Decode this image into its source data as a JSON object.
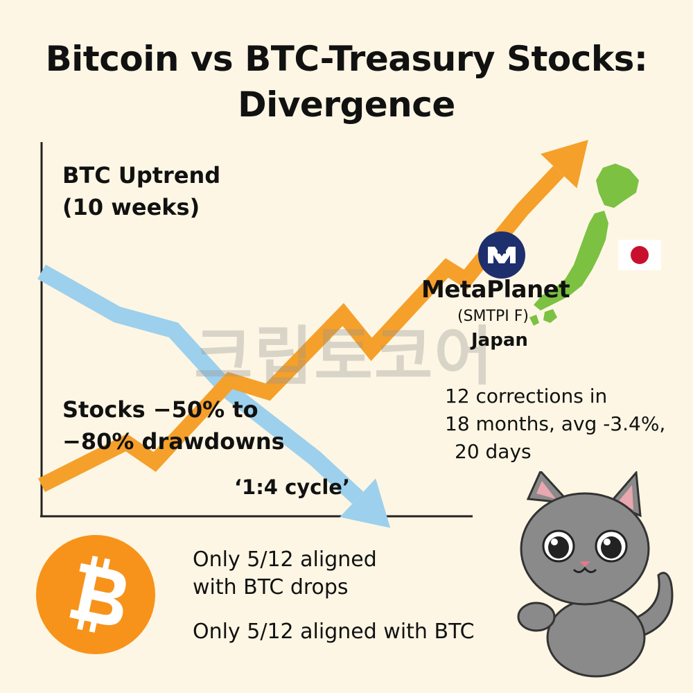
{
  "title": {
    "line1": "Bitcoin vs BTC-Treasury Stocks:",
    "line2": "Divergence"
  },
  "annotations": {
    "btc_uptrend_line1": "BTC Uptrend",
    "btc_uptrend_line2": "(10 weeks)",
    "stocks_line1": "Stocks −50% to",
    "stocks_line2": "−80% drawdowns",
    "cycle": "‘1:4 cycle’"
  },
  "metaplanet": {
    "name": "MetaPlanet",
    "ticker": "(SMTPI F)",
    "country": "Japan",
    "corrections_line1": "12 corrections in",
    "corrections_line2": "18 months, avg -3.4%,",
    "corrections_line3": "20 days"
  },
  "bottom_notes": {
    "aligned_drops_line1": "Only 5/12 aligned",
    "aligned_drops_line2": "with BTC drops",
    "aligned_btc": "Only 5/12 aligned with BTC"
  },
  "watermark": "크립토코어",
  "icons": {
    "btc_coin": "bitcoin-coin-icon",
    "metaplanet_logo": "metaplanet-logo-icon",
    "japan_map": "japan-map-icon",
    "japan_flag": "japan-flag-icon",
    "mascot": "gray-cat-icon"
  },
  "colors": {
    "background": "#fdf6e4",
    "btc_line": "#f5a02a",
    "stocks_line": "#9dd0ec",
    "japan_map": "#7cc142",
    "flag_red": "#c8102e",
    "metaplanet_navy": "#1e2f6e",
    "btc_coin": "#f7931a"
  },
  "chart_data": {
    "type": "line",
    "title": "Bitcoin vs BTC-Treasury Stocks: Divergence",
    "xlabel": "",
    "ylabel": "",
    "grid": false,
    "legend": "none",
    "ylim": [
      0,
      100
    ],
    "x": [
      0,
      1,
      2,
      3,
      4,
      5,
      6,
      7,
      8,
      9,
      10
    ],
    "series": [
      {
        "name": "BTC Uptrend",
        "color": "#f5a02a",
        "x": [
          0,
          1.8,
          2.4,
          4.0,
          4.8,
          6.4,
          7.0,
          8.6,
          9.0,
          10.2,
          11.6
        ],
        "values": [
          8,
          19,
          14,
          35,
          32,
          52,
          43,
          64,
          61,
          79,
          97
        ]
      },
      {
        "name": "Stocks",
        "color": "#9dd0ec",
        "x": [
          0,
          1.6,
          2.8,
          4.0,
          5.8,
          7.4
        ],
        "values": [
          63,
          52,
          48,
          32,
          15,
          -3
        ]
      }
    ]
  }
}
